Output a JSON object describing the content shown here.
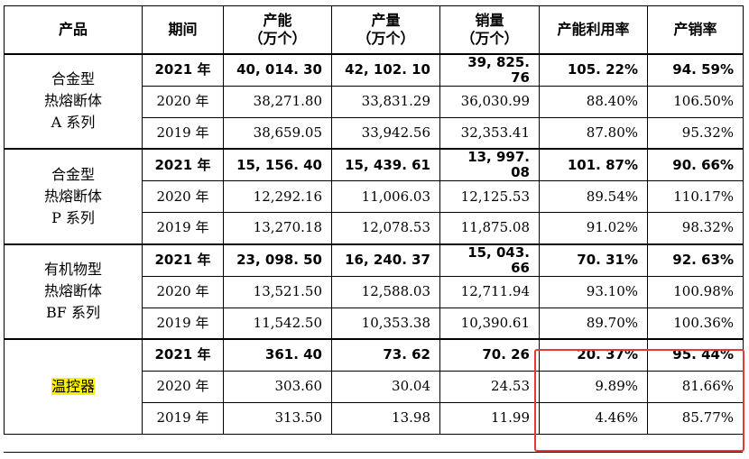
{
  "headers": {
    "product": "产品",
    "period": "期间",
    "capacity": "产能",
    "capacity_unit": "（万个）",
    "output": "产量",
    "output_unit": "（万个）",
    "sales": "销量",
    "sales_unit": "（万个）",
    "utilization": "产能利用率",
    "sell_through": "产销率"
  },
  "groups": [
    {
      "name_lines": [
        "合金型",
        "热熔断体",
        "A 系列"
      ],
      "rows": [
        {
          "period": "2021 年",
          "capacity": "40, 014. 30",
          "output": "42, 102. 10",
          "sales": "39, 825. 76",
          "utilization": "105. 22%",
          "sell_through": "94. 59%"
        },
        {
          "period": "2020 年",
          "capacity": "38,271.80",
          "output": "33,831.29",
          "sales": "36,030.99",
          "utilization": "88.40%",
          "sell_through": "106.50%"
        },
        {
          "period": "2019 年",
          "capacity": "38,659.05",
          "output": "33,942.56",
          "sales": "32,353.41",
          "utilization": "87.80%",
          "sell_through": "95.32%"
        }
      ]
    },
    {
      "name_lines": [
        "合金型",
        "热熔断体",
        "P 系列"
      ],
      "rows": [
        {
          "period": "2021 年",
          "capacity": "15, 156. 40",
          "output": "15, 439. 61",
          "sales": "13, 997. 08",
          "utilization": "101. 87%",
          "sell_through": "90. 66%"
        },
        {
          "period": "2020 年",
          "capacity": "12,292.16",
          "output": "11,006.03",
          "sales": "12,125.53",
          "utilization": "89.54%",
          "sell_through": "110.17%"
        },
        {
          "period": "2019 年",
          "capacity": "13,270.18",
          "output": "12,078.53",
          "sales": "11,875.08",
          "utilization": "91.02%",
          "sell_through": "98.32%"
        }
      ]
    },
    {
      "name_lines": [
        "有机物型",
        "热熔断体",
        "BF 系列"
      ],
      "rows": [
        {
          "period": "2021 年",
          "capacity": "23, 098. 50",
          "output": "16, 240. 37",
          "sales": "15, 043. 66",
          "utilization": "70. 31%",
          "sell_through": "92. 63%"
        },
        {
          "period": "2020 年",
          "capacity": "13,521.50",
          "output": "12,588.03",
          "sales": "12,711.94",
          "utilization": "93.10%",
          "sell_through": "100.98%"
        },
        {
          "period": "2019 年",
          "capacity": "11,542.50",
          "output": "10,353.38",
          "sales": "10,390.61",
          "utilization": "89.70%",
          "sell_through": "100.36%"
        }
      ]
    },
    {
      "name_lines": [
        "温控器"
      ],
      "highlight": true,
      "rows": [
        {
          "period": "2021 年",
          "capacity": "361. 40",
          "output": "73. 62",
          "sales": "70. 26",
          "utilization": "20. 37%",
          "sell_through": "95. 44%"
        },
        {
          "period": "2020 年",
          "capacity": "303.60",
          "output": "30.04",
          "sales": "24.53",
          "utilization": "9.89%",
          "sell_through": "81.66%"
        },
        {
          "period": "2019 年",
          "capacity": "313.50",
          "output": "13.98",
          "sales": "11.99",
          "utilization": "4.46%",
          "sell_through": "85.77%"
        }
      ]
    }
  ],
  "colors": {
    "highlight": "#fff100",
    "annotation_box": "#e53935"
  }
}
